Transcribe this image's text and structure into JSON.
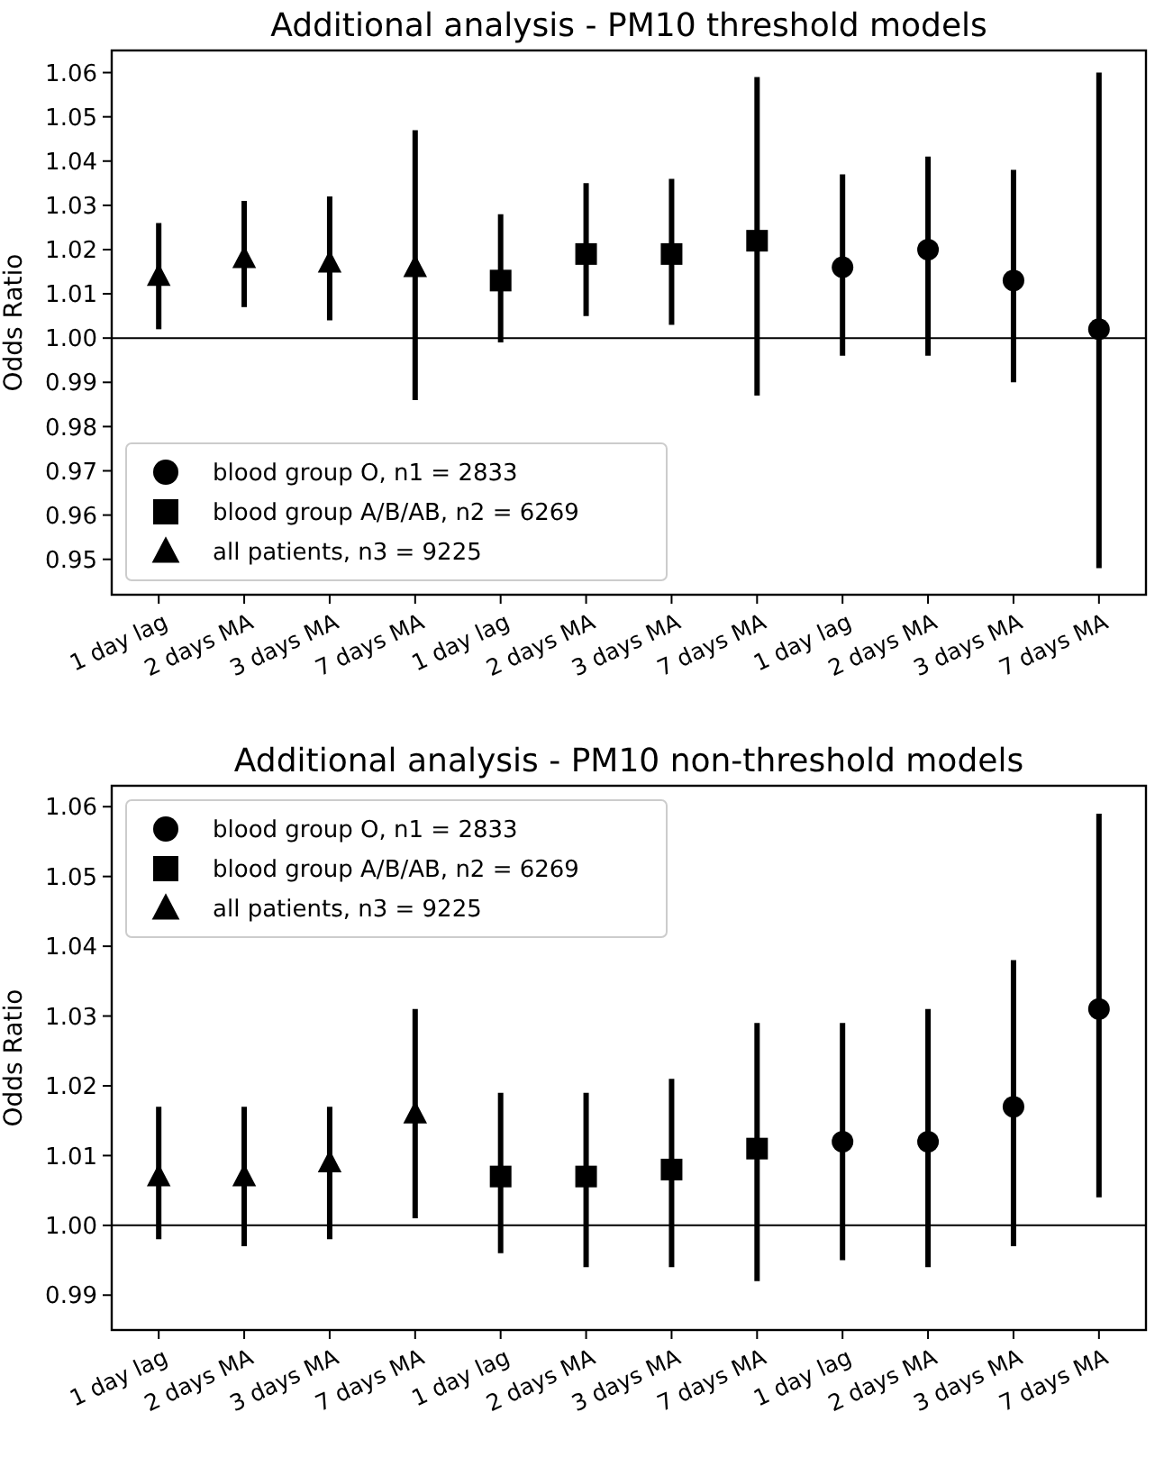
{
  "chart_data": [
    {
      "type": "scatter",
      "title": "Additional analysis - PM10 threshold models",
      "ylabel": "Odds Ratio",
      "categories": [
        "1 day lag",
        "2 days MA",
        "3 days MA",
        "7 days MA",
        "1 day lag",
        "2 days MA",
        "3 days MA",
        "7 days MA",
        "1 day lag",
        "2 days MA",
        "3 days MA",
        "7 days MA"
      ],
      "series": [
        {
          "name": "blood group O, n1 = 2833",
          "color": "#000000",
          "marker": "circle",
          "values": [
            null,
            null,
            null,
            null,
            null,
            null,
            null,
            null,
            1.016,
            1.02,
            1.013,
            1.002
          ],
          "errors": [
            null,
            null,
            null,
            null,
            null,
            null,
            null,
            null,
            [
              0.996,
              1.037
            ],
            [
              0.996,
              1.041
            ],
            [
              0.99,
              1.038
            ],
            [
              0.948,
              1.06
            ]
          ]
        },
        {
          "name": "blood group A/B/AB, n2 = 6269",
          "color": "#000000",
          "marker": "square",
          "values": [
            null,
            null,
            null,
            null,
            1.013,
            1.019,
            1.019,
            1.022,
            null,
            null,
            null,
            null
          ],
          "errors": [
            null,
            null,
            null,
            null,
            [
              0.999,
              1.028
            ],
            [
              1.005,
              1.035
            ],
            [
              1.003,
              1.036
            ],
            [
              0.987,
              1.059
            ],
            null,
            null,
            null,
            null
          ]
        },
        {
          "name": "all patients, n3 = 9225",
          "color": "#000000",
          "marker": "triangle",
          "values": [
            1.014,
            1.018,
            1.017,
            1.016,
            null,
            null,
            null,
            null,
            null,
            null,
            null,
            null
          ],
          "errors": [
            [
              1.002,
              1.026
            ],
            [
              1.007,
              1.031
            ],
            [
              1.004,
              1.032
            ],
            [
              0.986,
              1.047
            ],
            null,
            null,
            null,
            null,
            null,
            null,
            null,
            null
          ]
        }
      ],
      "ylim": [
        0.942,
        1.065
      ],
      "yticks": [
        {
          "value": 0.95,
          "label": "0.95"
        },
        {
          "value": 0.96,
          "label": "0.96"
        },
        {
          "value": 0.97,
          "label": "0.97"
        },
        {
          "value": 0.98,
          "label": "0.98"
        },
        {
          "value": 0.99,
          "label": "0.99"
        },
        {
          "value": 1.0,
          "label": "1.00"
        },
        {
          "value": 1.01,
          "label": "1.01"
        },
        {
          "value": 1.02,
          "label": "1.02"
        },
        {
          "value": 1.03,
          "label": "1.03"
        },
        {
          "value": 1.04,
          "label": "1.04"
        },
        {
          "value": 1.05,
          "label": "1.05"
        },
        {
          "value": 1.06,
          "label": "1.06"
        }
      ],
      "ref_lines": [
        {
          "axis": "y",
          "value": 1.0,
          "color": "#000000"
        }
      ],
      "legend": "bottom left",
      "grid": false
    },
    {
      "type": "scatter",
      "title": "Additional analysis - PM10 non-threshold models",
      "ylabel": "Odds Ratio",
      "categories": [
        "1 day lag",
        "2 days MA",
        "3 days MA",
        "7 days MA",
        "1 day lag",
        "2 days MA",
        "3 days MA",
        "7 days MA",
        "1 day lag",
        "2 days MA",
        "3 days MA",
        "7 days MA"
      ],
      "series": [
        {
          "name": "blood group O, n1 = 2833",
          "color": "#000000",
          "marker": "circle",
          "values": [
            null,
            null,
            null,
            null,
            null,
            null,
            null,
            null,
            1.012,
            1.012,
            1.017,
            1.031
          ],
          "errors": [
            null,
            null,
            null,
            null,
            null,
            null,
            null,
            null,
            [
              0.995,
              1.029
            ],
            [
              0.994,
              1.031
            ],
            [
              0.997,
              1.038
            ],
            [
              1.004,
              1.059
            ]
          ]
        },
        {
          "name": "blood group A/B/AB, n2 = 6269",
          "color": "#000000",
          "marker": "square",
          "values": [
            null,
            null,
            null,
            null,
            1.007,
            1.007,
            1.008,
            1.011,
            null,
            null,
            null,
            null
          ],
          "errors": [
            null,
            null,
            null,
            null,
            [
              0.996,
              1.019
            ],
            [
              0.994,
              1.019
            ],
            [
              0.994,
              1.021
            ],
            [
              0.992,
              1.029
            ],
            null,
            null,
            null,
            null
          ]
        },
        {
          "name": "all patients, n3 = 9225",
          "color": "#000000",
          "marker": "triangle",
          "values": [
            1.007,
            1.007,
            1.009,
            1.016,
            null,
            null,
            null,
            null,
            null,
            null,
            null,
            null
          ],
          "errors": [
            [
              0.998,
              1.017
            ],
            [
              0.997,
              1.017
            ],
            [
              0.998,
              1.017
            ],
            [
              1.001,
              1.031
            ],
            null,
            null,
            null,
            null,
            null,
            null,
            null,
            null
          ]
        }
      ],
      "ylim": [
        0.985,
        1.063
      ],
      "yticks": [
        {
          "value": 0.99,
          "label": "0.99"
        },
        {
          "value": 1.0,
          "label": "1.00"
        },
        {
          "value": 1.01,
          "label": "1.01"
        },
        {
          "value": 1.02,
          "label": "1.02"
        },
        {
          "value": 1.03,
          "label": "1.03"
        },
        {
          "value": 1.04,
          "label": "1.04"
        },
        {
          "value": 1.05,
          "label": "1.05"
        },
        {
          "value": 1.06,
          "label": "1.06"
        }
      ],
      "ref_lines": [
        {
          "axis": "y",
          "value": 1.0,
          "color": "#000000"
        }
      ],
      "legend": "top left",
      "grid": false
    }
  ]
}
